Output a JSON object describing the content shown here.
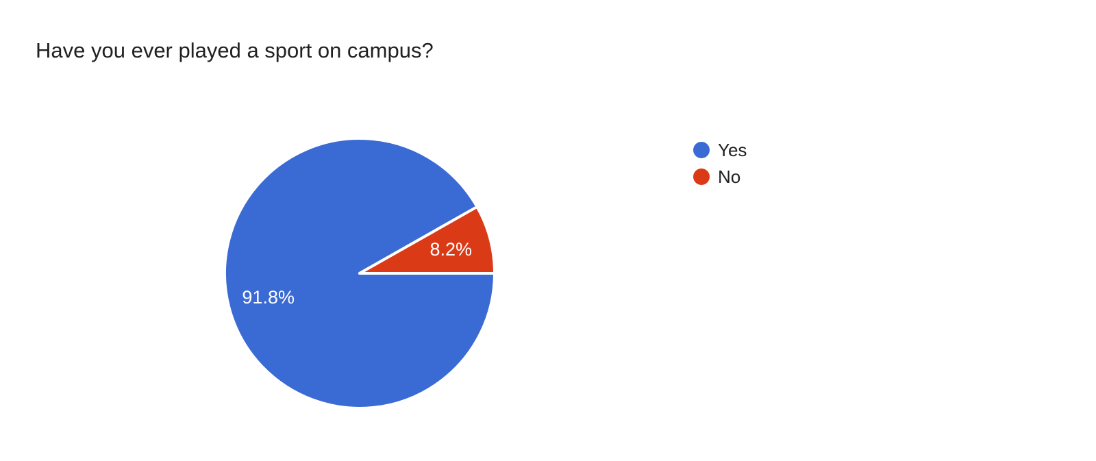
{
  "page": {
    "background": "#ffffff"
  },
  "chart_data": {
    "type": "pie",
    "title": "Have you ever played a sport on campus?",
    "categories": [
      "Yes",
      "No"
    ],
    "values": [
      91.8,
      8.2
    ],
    "slice_labels": [
      "91.8%",
      "8.2%"
    ],
    "colors": [
      "#3A6AD3",
      "#DB3A17"
    ],
    "slice_border_color": "#ffffff",
    "label_color": "#ffffff",
    "title_color": "#212121",
    "legend_text_color": "#212121",
    "legend_position": "right",
    "start_angle_deg": 0,
    "direction": "clockwise",
    "legend_entries": [
      {
        "label": "Yes"
      },
      {
        "label": "No"
      }
    ]
  }
}
